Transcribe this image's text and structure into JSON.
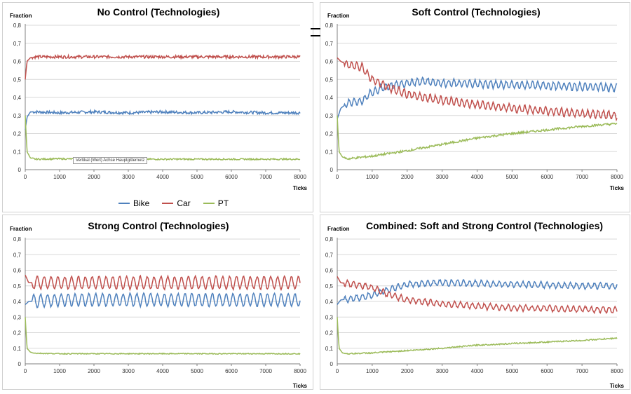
{
  "colors": {
    "Bike": "#4f81bd",
    "Car": "#c0504d",
    "PT": "#9bbb59",
    "grid": "#d9d9d9",
    "axis": "#808080"
  },
  "legend": [
    {
      "name": "Bike"
    },
    {
      "name": "Car"
    },
    {
      "name": "PT"
    }
  ],
  "tooltip_text": "Vertikal (Wert) Achse Hauptgitternetz",
  "chart_data": [
    {
      "type": "line",
      "title": "No Control (Technologies)",
      "ylabel": "Fraction",
      "xlabel": "Ticks",
      "xlim": [
        0,
        8000
      ],
      "ylim": [
        0,
        0.8
      ],
      "xticks": [
        "0",
        "1000",
        "2000",
        "3000",
        "4000",
        "5000",
        "6000",
        "7000",
        "8000"
      ],
      "yticks": [
        "0",
        "0,1",
        "0,2",
        "0,3",
        "0,4",
        "0,5",
        "0,6",
        "0,7",
        "0,8"
      ],
      "grid": true,
      "series": [
        {
          "name": "Bike",
          "x": [
            0,
            50,
            150,
            300,
            1000,
            2000,
            3000,
            4000,
            5000,
            6000,
            7000,
            8000
          ],
          "y": [
            0.22,
            0.29,
            0.32,
            0.32,
            0.315,
            0.32,
            0.315,
            0.32,
            0.315,
            0.32,
            0.315,
            0.315
          ],
          "noise": 0.008,
          "period": 0
        },
        {
          "name": "Car",
          "x": [
            0,
            50,
            150,
            300,
            1000,
            2000,
            3000,
            4000,
            5000,
            6000,
            7000,
            8000
          ],
          "y": [
            0.5,
            0.6,
            0.62,
            0.625,
            0.625,
            0.625,
            0.625,
            0.625,
            0.625,
            0.625,
            0.625,
            0.625
          ],
          "noise": 0.008,
          "period": 0
        },
        {
          "name": "PT",
          "x": [
            0,
            50,
            150,
            300,
            1000,
            2000,
            3000,
            4000,
            5000,
            6000,
            7000,
            8000
          ],
          "y": [
            0.3,
            0.1,
            0.065,
            0.058,
            0.06,
            0.058,
            0.058,
            0.058,
            0.058,
            0.058,
            0.058,
            0.058
          ],
          "noise": 0.004,
          "period": 0
        }
      ]
    },
    {
      "type": "line",
      "title": "Soft Control (Technologies)",
      "ylabel": "Fraction",
      "xlabel": "Ticks",
      "xlim": [
        0,
        8000
      ],
      "ylim": [
        0,
        0.8
      ],
      "xticks": [
        "0",
        "1000",
        "2000",
        "3000",
        "4000",
        "5000",
        "6000",
        "7000",
        "8000"
      ],
      "yticks": [
        "0",
        "0,1",
        "0,2",
        "0,3",
        "0,4",
        "0,5",
        "0,6",
        "0,7",
        "0,8"
      ],
      "grid": true,
      "series": [
        {
          "name": "Bike",
          "x": [
            0,
            100,
            300,
            700,
            1000,
            1400,
            2000,
            2500,
            3000,
            4000,
            5000,
            6000,
            7000,
            8000
          ],
          "y": [
            0.28,
            0.34,
            0.37,
            0.38,
            0.43,
            0.46,
            0.48,
            0.49,
            0.48,
            0.475,
            0.47,
            0.465,
            0.46,
            0.455
          ],
          "noise": 0.006,
          "period": 150,
          "amp": 0.02
        },
        {
          "name": "Car",
          "x": [
            0,
            100,
            300,
            700,
            1000,
            1400,
            2000,
            2500,
            3000,
            4000,
            5000,
            6000,
            7000,
            8000
          ],
          "y": [
            0.62,
            0.6,
            0.58,
            0.57,
            0.5,
            0.46,
            0.42,
            0.4,
            0.385,
            0.36,
            0.34,
            0.325,
            0.31,
            0.3
          ],
          "noise": 0.006,
          "period": 150,
          "amp": 0.02
        },
        {
          "name": "PT",
          "x": [
            0,
            50,
            150,
            300,
            1000,
            2000,
            3000,
            4000,
            5000,
            6000,
            7000,
            8000
          ],
          "y": [
            0.3,
            0.1,
            0.07,
            0.06,
            0.075,
            0.105,
            0.14,
            0.175,
            0.2,
            0.22,
            0.24,
            0.255
          ],
          "noise": 0.006,
          "period": 0
        }
      ]
    },
    {
      "type": "line",
      "title": "Strong Control (Technologies)",
      "ylabel": "Fraction",
      "xlabel": "Ticks",
      "xlim": [
        0,
        8000
      ],
      "ylim": [
        0,
        0.8
      ],
      "xticks": [
        "0",
        "1000",
        "2000",
        "3000",
        "4000",
        "5000",
        "6000",
        "7000",
        "8000"
      ],
      "yticks": [
        "0",
        "0,1",
        "0,2",
        "0,3",
        "0,4",
        "0,5",
        "0,6",
        "0,7",
        "0,8"
      ],
      "grid": true,
      "series": [
        {
          "name": "Bike",
          "x": [
            0,
            100,
            1000,
            2000,
            3000,
            4000,
            5000,
            6000,
            7000,
            8000
          ],
          "y": [
            0.38,
            0.4,
            0.41,
            0.41,
            0.41,
            0.41,
            0.41,
            0.41,
            0.41,
            0.41
          ],
          "noise": 0.005,
          "period": 200,
          "amp": 0.04
        },
        {
          "name": "Car",
          "x": [
            0,
            100,
            1000,
            2000,
            3000,
            4000,
            5000,
            6000,
            7000,
            8000
          ],
          "y": [
            0.57,
            0.52,
            0.52,
            0.52,
            0.52,
            0.52,
            0.52,
            0.52,
            0.52,
            0.52
          ],
          "noise": 0.005,
          "period": 200,
          "amp": 0.04
        },
        {
          "name": "PT",
          "x": [
            0,
            50,
            150,
            300,
            1000,
            2000,
            3000,
            4000,
            5000,
            6000,
            7000,
            8000
          ],
          "y": [
            0.3,
            0.1,
            0.075,
            0.068,
            0.065,
            0.065,
            0.065,
            0.065,
            0.065,
            0.065,
            0.065,
            0.065
          ],
          "noise": 0.003,
          "period": 0
        }
      ]
    },
    {
      "type": "line",
      "title": "Combined: Soft and Strong Control (Technologies)",
      "ylabel": "Fraction",
      "xlabel": "Ticks",
      "xlim": [
        0,
        8000
      ],
      "ylim": [
        0,
        0.8
      ],
      "xticks": [
        "0",
        "1000",
        "2000",
        "3000",
        "4000",
        "5000",
        "6000",
        "7000",
        "8000"
      ],
      "yticks": [
        "0",
        "0,1",
        "0,2",
        "0,3",
        "0,4",
        "0,5",
        "0,6",
        "0,7",
        "0,8"
      ],
      "grid": true,
      "series": [
        {
          "name": "Bike",
          "x": [
            0,
            100,
            500,
            1000,
            1400,
            2000,
            3000,
            4000,
            5000,
            6000,
            7000,
            8000
          ],
          "y": [
            0.38,
            0.41,
            0.42,
            0.44,
            0.47,
            0.51,
            0.52,
            0.515,
            0.51,
            0.505,
            0.5,
            0.5
          ],
          "noise": 0.006,
          "period": 170,
          "amp": 0.018
        },
        {
          "name": "Car",
          "x": [
            0,
            100,
            500,
            1000,
            1400,
            2000,
            3000,
            4000,
            5000,
            6000,
            7000,
            8000
          ],
          "y": [
            0.56,
            0.52,
            0.51,
            0.49,
            0.45,
            0.41,
            0.385,
            0.37,
            0.36,
            0.355,
            0.35,
            0.345
          ],
          "noise": 0.006,
          "period": 170,
          "amp": 0.018
        },
        {
          "name": "PT",
          "x": [
            0,
            50,
            150,
            300,
            1000,
            2000,
            3000,
            4000,
            5000,
            6000,
            7000,
            8000
          ],
          "y": [
            0.3,
            0.1,
            0.07,
            0.065,
            0.07,
            0.085,
            0.1,
            0.12,
            0.13,
            0.14,
            0.15,
            0.165
          ],
          "noise": 0.004,
          "period": 0
        }
      ]
    }
  ]
}
